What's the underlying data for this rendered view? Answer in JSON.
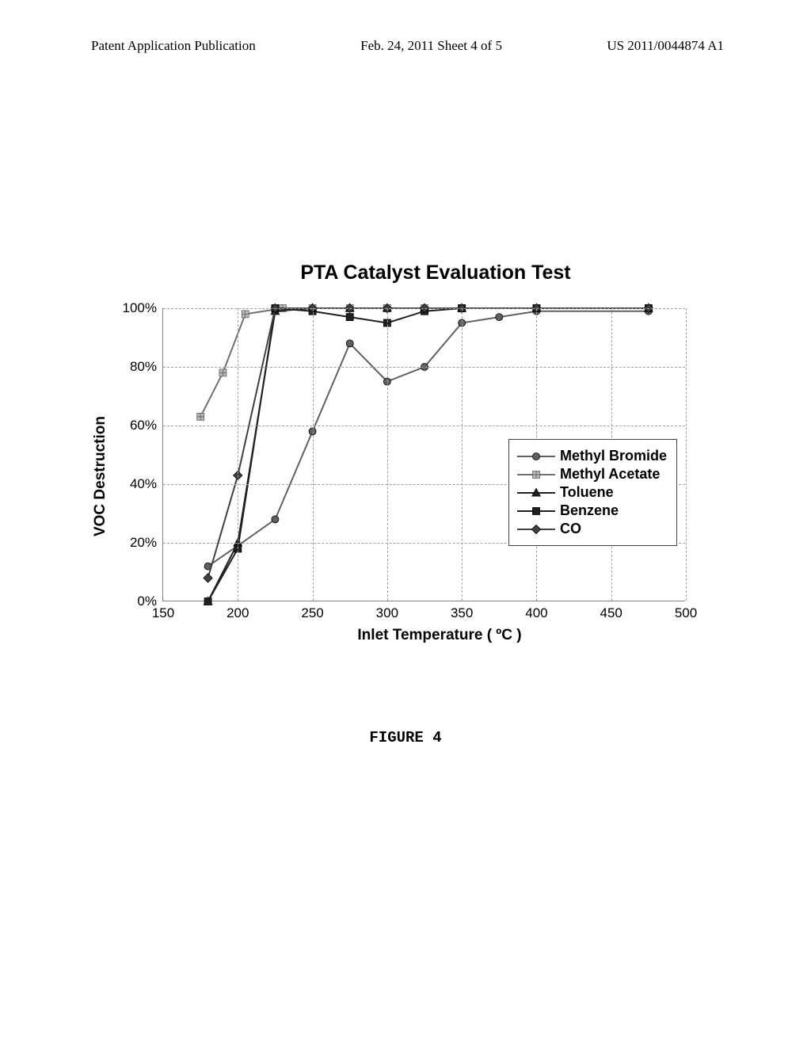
{
  "header": {
    "left": "Patent Application Publication",
    "center": "Feb. 24, 2011  Sheet 4 of 5",
    "right": "US 2011/0044874 A1"
  },
  "chart": {
    "type": "line",
    "title": "PTA Catalyst Evaluation Test",
    "title_fontsize": 25,
    "xlabel": "Inlet Temperature  (  ºC  )",
    "ylabel": "VOC Destruction",
    "label_fontsize": 19,
    "tick_fontsize": 17,
    "xlim": [
      150,
      500
    ],
    "ylim": [
      0,
      100
    ],
    "xtick_step": 50,
    "ytick_step": 20,
    "ytick_suffix": "%",
    "background_color": "#ffffff",
    "grid_color": "#a0a0a0",
    "axis_color": "#808080",
    "line_width": 2.0,
    "marker_size": 9,
    "series": [
      {
        "name": "Methyl Bromide",
        "marker": "circle",
        "color": "#606060",
        "x": [
          180,
          200,
          225,
          250,
          275,
          300,
          325,
          350,
          375,
          400,
          475
        ],
        "y": [
          12,
          19,
          28,
          58,
          88,
          75,
          80,
          95,
          97,
          99,
          99
        ]
      },
      {
        "name": "Methyl Acetate",
        "marker": "square-grid",
        "color": "#707070",
        "x": [
          175,
          190,
          205,
          230,
          250,
          275,
          300,
          325,
          350,
          400,
          475
        ],
        "y": [
          63,
          78,
          98,
          100,
          100,
          100,
          100,
          100,
          100,
          100,
          100
        ]
      },
      {
        "name": "Toluene",
        "marker": "triangle",
        "color": "#202020",
        "x": [
          180,
          200,
          225,
          250,
          275,
          300,
          325,
          350,
          400,
          475
        ],
        "y": [
          0,
          20,
          99,
          100,
          100,
          100,
          100,
          100,
          100,
          100
        ]
      },
      {
        "name": "Benzene",
        "marker": "square",
        "color": "#202020",
        "x": [
          180,
          200,
          225,
          250,
          275,
          300,
          325,
          350,
          400,
          475
        ],
        "y": [
          0,
          18,
          100,
          99,
          97,
          95,
          99,
          100,
          100,
          100
        ]
      },
      {
        "name": "CO",
        "marker": "diamond",
        "color": "#404040",
        "x": [
          180,
          200,
          225,
          250,
          275,
          300,
          325,
          350,
          400,
          475
        ],
        "y": [
          8,
          43,
          100,
          100,
          100,
          100,
          100,
          100,
          100,
          100
        ]
      }
    ]
  },
  "figure_caption": "FIGURE 4"
}
